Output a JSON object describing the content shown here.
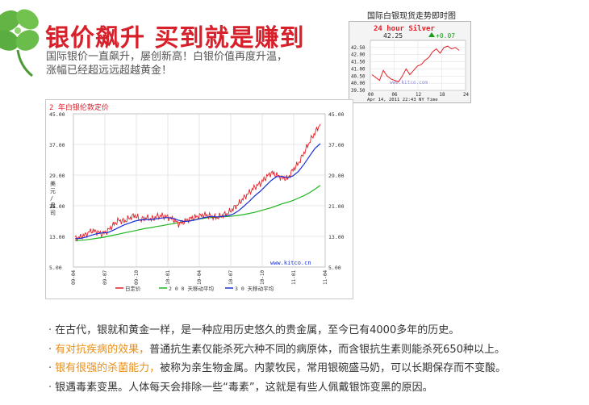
{
  "header": {
    "title": "银价飙升 买到就是赚到",
    "subtitle_lines": [
      "国际银价一直飙升，屡创新高！白银价值再度升温，",
      "涨幅已经超远远超越黄金！"
    ]
  },
  "colors": {
    "title_red": "#d8202a",
    "highlight_orange": "#e8901a",
    "price_red": "#e41e26",
    "ma200_green": "#1fb51f",
    "ma30_blue": "#1a2fd6",
    "clover_green": "#62b545"
  },
  "silver_widget": {
    "caption": "国际白银现货走势即时图",
    "title": "24 hour Silver",
    "price": "42.25",
    "change": "+0.07",
    "footer": "Apr 14, 2011 22:43 NY Time",
    "watermark": "www.kitco.com",
    "chart_data": {
      "type": "line",
      "title": "24 hour Silver",
      "x": [
        0,
        1,
        2,
        3,
        4,
        5,
        6,
        7,
        8,
        9,
        10,
        11,
        12,
        13,
        14,
        15,
        16,
        17,
        18,
        19,
        20,
        21,
        22,
        23
      ],
      "values": [
        40.6,
        40.4,
        40.2,
        40.9,
        40.5,
        40.3,
        40.2,
        40.1,
        40.5,
        41.0,
        40.6,
        40.9,
        41.2,
        41.3,
        41.6,
        41.8,
        42.2,
        42.4,
        42.1,
        42.5,
        42.6,
        42.4,
        42.5,
        42.3
      ],
      "x_ticks": [
        "00",
        "06",
        "12",
        "18",
        "24"
      ],
      "y_ticks": [
        "42.50",
        "42.00",
        "41.50",
        "41.00",
        "40.50",
        "40.00",
        "39.50"
      ],
      "ylim": [
        39.5,
        43.0
      ],
      "grid": true
    }
  },
  "main_chart": {
    "title": "2 年白银伦敦定价",
    "watermark": "www.kitco.cn",
    "ylabel_left": [
      "美",
      "元",
      "/",
      "盎",
      "司"
    ],
    "left_ticks": [
      "45.00",
      "37.00",
      "29.00",
      "21.00",
      "13.00",
      "5.00"
    ],
    "right_ticks": [
      "45.00",
      "37.00",
      "29.00",
      "21.00",
      "13.00",
      "5.00"
    ],
    "x_ticks": [
      "09-04",
      "09-07",
      "09-10",
      "10-01",
      "10-04",
      "10-07",
      "10-10",
      "11-01",
      "11-04"
    ],
    "legend": [
      "日定价",
      "2 0 0 天移动平均",
      "3 0 天移动平均"
    ],
    "chart_data": {
      "type": "line",
      "title": "2 年白银伦敦定价",
      "ylim": [
        5,
        45
      ],
      "x_ticks": [
        "09-04",
        "09-07",
        "09-10",
        "10-01",
        "10-04",
        "10-07",
        "10-10",
        "11-01",
        "11-04"
      ],
      "series": [
        {
          "name": "日定价",
          "values": [
            12.5,
            12.8,
            13.5,
            14.5,
            14.2,
            13.6,
            14.5,
            16.0,
            17.2,
            16.9,
            17.8,
            18.5,
            17.3,
            17.9,
            17.5,
            18.2,
            18.4,
            18.0,
            17.5,
            16.3,
            16.8,
            17.6,
            18.0,
            18.4,
            18.6,
            18.2,
            17.9,
            18.5,
            19.0,
            20.2,
            21.5,
            23.1,
            24.5,
            25.9,
            26.8,
            28.4,
            29.6,
            29.0,
            28.3,
            28.1,
            30.4,
            32.1,
            34.8,
            37.6,
            40.0,
            42.3
          ]
        },
        {
          "name": "2 0 0 天移动平均",
          "values": [
            11.9,
            12.0,
            12.1,
            12.3,
            12.5,
            12.7,
            13.0,
            13.3,
            13.6,
            13.9,
            14.2,
            14.5,
            14.8,
            15.1,
            15.3,
            15.6,
            15.8,
            16.1,
            16.3,
            16.6,
            16.8,
            17.1,
            17.3,
            17.6,
            17.8,
            17.9,
            18.0,
            18.1,
            18.2,
            18.3,
            18.5,
            18.7,
            19.0,
            19.3,
            19.7,
            20.1,
            20.5,
            21.0,
            21.5,
            21.9,
            22.4,
            23.0,
            23.6,
            24.4,
            25.3,
            26.3
          ]
        },
        {
          "name": "3 0 天移动平均",
          "values": [
            12.4,
            12.5,
            12.8,
            13.3,
            13.7,
            13.9,
            14.0,
            14.6,
            15.3,
            16.0,
            16.5,
            17.0,
            17.3,
            17.4,
            17.4,
            17.6,
            17.8,
            17.9,
            17.7,
            17.2,
            16.9,
            17.0,
            17.3,
            17.7,
            18.0,
            18.2,
            18.1,
            18.2,
            18.4,
            18.8,
            19.7,
            20.9,
            22.2,
            23.6,
            24.8,
            26.2,
            27.6,
            28.6,
            28.6,
            28.3,
            28.8,
            30.0,
            31.8,
            33.9,
            35.9,
            37.2
          ]
        }
      ],
      "grid": true
    }
  },
  "bullets": [
    {
      "highlight": "",
      "text": "在古代，银就和黄金一样，是一种应用历史悠久的贵金属，至今已有4000多年的历史。"
    },
    {
      "highlight": "有对抗疾病的效果，",
      "text": "普通抗生素仅能杀死六种不同的病原体，而含银抗生素则能杀死650种以上。"
    },
    {
      "highlight": "银有很强的杀菌能力，",
      "text": "被称为亲生物金属。内蒙牧民，常用银碗盛马奶，可以长期保存而不变酸。"
    },
    {
      "highlight": "",
      "text": "银遇毒素变黑。人体每天会排除一些“毒素”，这就是有些人佩戴银饰变黑的原因。"
    }
  ]
}
